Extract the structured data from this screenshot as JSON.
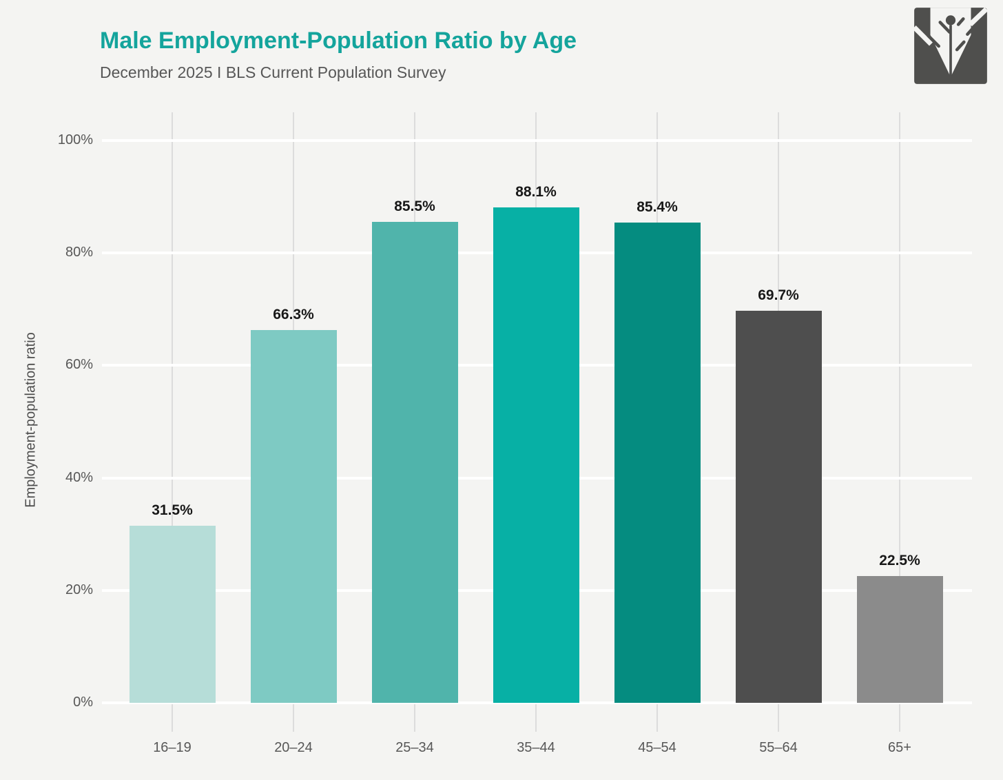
{
  "header": {
    "title": "Male Employment-Population Ratio by Age",
    "subtitle": "December 2025 I BLS Current Population Survey"
  },
  "icons": {
    "logo": "book-plant-logo"
  },
  "colors": {
    "background": "#f4f4f2",
    "title": "#14a49c",
    "subtitle_text": "#575757",
    "tick_text": "#575757",
    "value_label_text": "#181818",
    "horizontal_grid": "#ffffff",
    "vertical_grid": "#dcdcdc",
    "logo": "#4f4f4d"
  },
  "chart_data": {
    "type": "bar",
    "title": "Male Employment-Population Ratio by Age",
    "subtitle": "December 2025 I BLS Current Population Survey",
    "categories": [
      "16–19",
      "20–24",
      "25–34",
      "35–44",
      "45–54",
      "55–64",
      "65+"
    ],
    "values": [
      31.5,
      66.3,
      85.5,
      88.1,
      85.4,
      69.7,
      22.5
    ],
    "value_labels": [
      "31.5%",
      "66.3%",
      "85.5%",
      "88.1%",
      "85.4%",
      "69.7%",
      "22.5%"
    ],
    "bar_colors": [
      "#b6ddd8",
      "#7ecac3",
      "#50b4ab",
      "#07b0a5",
      "#058c80",
      "#4e4e4e",
      "#8b8b8b"
    ],
    "xlabel": "",
    "ylabel": "Employment-population ratio",
    "ylim": [
      0,
      100
    ],
    "yticks": [
      0,
      20,
      40,
      60,
      80,
      100
    ],
    "ytick_labels": [
      "0%",
      "20%",
      "40%",
      "60%",
      "80%",
      "100%"
    ],
    "grid": "horizontal-white-and-vertical-gray",
    "legend": "none"
  }
}
